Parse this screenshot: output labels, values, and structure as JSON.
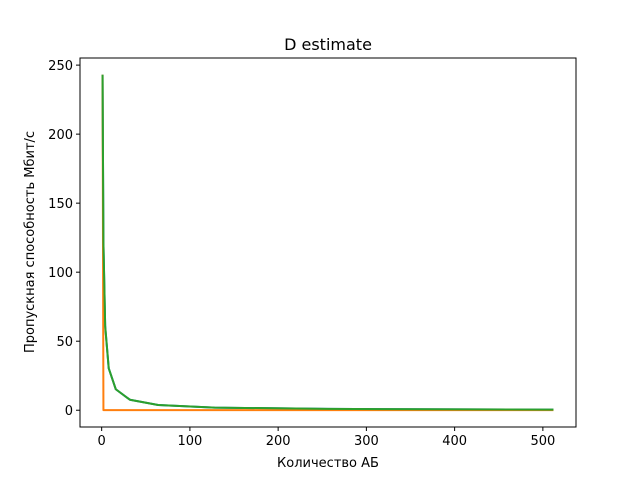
{
  "chart_data": {
    "type": "line",
    "title": "D estimate",
    "x_label": "Количество АБ",
    "y_label": "Пропускная способность Мбит/с",
    "x": [
      1,
      2,
      4,
      8,
      16,
      32,
      64,
      128,
      256,
      512
    ],
    "series": [
      {
        "color": "#1f77b4",
        "values": [
          243,
          121.5,
          60.75,
          30.4,
          15.2,
          7.6,
          3.8,
          1.9,
          0.95,
          0.47
        ]
      },
      {
        "color": "#ff7f0e",
        "values": [
          243,
          0.1,
          0.1,
          0.1,
          0.1,
          0.1,
          0.1,
          0.1,
          0.1,
          0.1
        ]
      },
      {
        "color": "#2ca02c",
        "values": [
          243,
          121.5,
          60.75,
          30.4,
          15.2,
          7.6,
          3.8,
          1.9,
          0.95,
          0.47
        ]
      }
    ],
    "xlim": [
      -24.55,
      537.55
    ],
    "xticks": [
      0,
      100,
      200,
      300,
      400,
      500
    ],
    "ylim": [
      -12.15,
      255.15
    ],
    "yticks": [
      0,
      50,
      100,
      150,
      200,
      250
    ]
  }
}
